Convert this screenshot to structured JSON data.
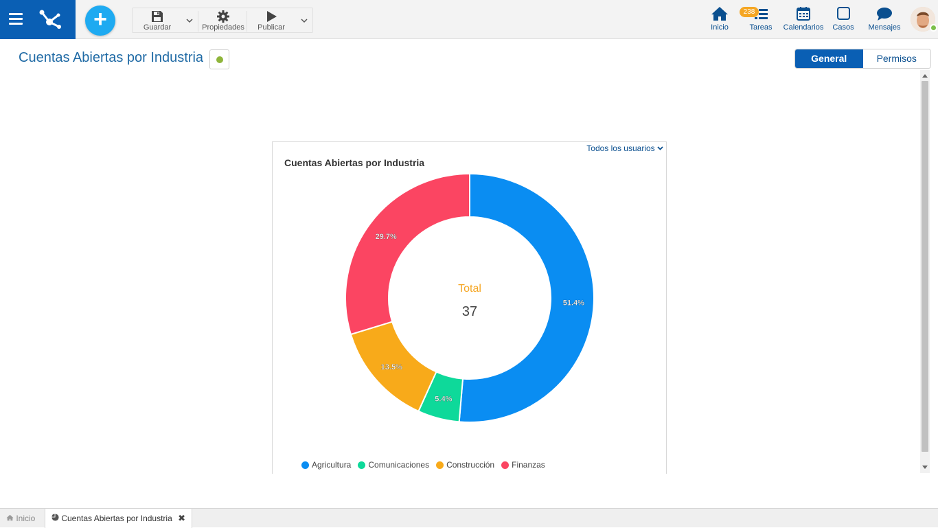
{
  "toolbar": {
    "save_label": "Guardar",
    "properties_label": "Propiedades",
    "publish_label": "Publicar"
  },
  "nav": {
    "home_label": "Inicio",
    "tasks_label": "Tareas",
    "tasks_badge": "238",
    "calendars_label": "Calendarios",
    "cases_label": "Casos",
    "messages_label": "Mensajes"
  },
  "page": {
    "title": "Cuentas Abiertas por Industria",
    "status_color": "#8fb53b"
  },
  "tabs": [
    {
      "label": "General",
      "active": true
    },
    {
      "label": "Permisos",
      "active": false
    }
  ],
  "chart": {
    "user_filter": "Todos los usuarios",
    "center_label": "Total",
    "center_value": "37"
  },
  "chart_data": {
    "type": "pie",
    "variant": "donut",
    "title": "Cuentas Abiertas por Industria",
    "categories": [
      "Agricultura",
      "Comunicaciones",
      "Construcción",
      "Finanzas"
    ],
    "values": [
      19,
      2,
      5,
      11
    ],
    "labels": [
      "51.4%",
      "5.4%",
      "13.5%",
      "29.7%"
    ],
    "colors": [
      "#0a8df2",
      "#0ed99a",
      "#f8aa1a",
      "#fb4562"
    ],
    "legend": "bottom"
  },
  "bottom_tabs": {
    "home_label": "Inicio",
    "open_label": "Cuentas Abiertas por Industria"
  }
}
